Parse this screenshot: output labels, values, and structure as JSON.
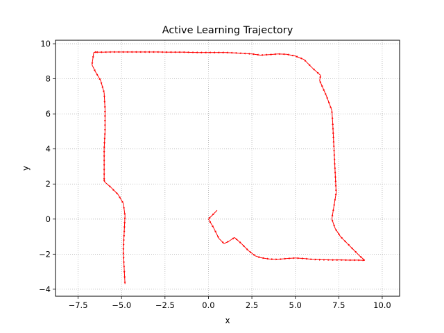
{
  "chart_data": {
    "type": "line",
    "title": "Active Learning Trajectory",
    "xlabel": "x",
    "ylabel": "y",
    "xlim": [
      -8.8,
      11.0
    ],
    "ylim": [
      -4.4,
      10.2
    ],
    "xticks": [
      -7.5,
      -5.0,
      -2.5,
      0.0,
      2.5,
      5.0,
      7.5,
      10.0
    ],
    "xtick_labels": [
      "−7.5",
      "−5.0",
      "−2.5",
      "0.0",
      "2.5",
      "5.0",
      "7.5",
      "10.0"
    ],
    "yticks": [
      -4,
      -2,
      0,
      2,
      4,
      6,
      8,
      10
    ],
    "ytick_labels": [
      "−4",
      "−2",
      "0",
      "2",
      "4",
      "6",
      "8",
      "10"
    ],
    "grid": true,
    "grid_style": "dotted",
    "series": [
      {
        "color": "#ff0000",
        "marker": "arrow",
        "x": [
          0.5,
          0.2,
          0.0,
          0.3,
          0.6,
          0.9,
          1.2,
          1.5,
          1.9,
          2.3,
          2.7,
          3.0,
          3.5,
          4.0,
          4.5,
          5.0,
          5.5,
          6.0,
          6.5,
          7.0,
          7.5,
          8.0,
          8.5,
          9.0,
          8.7,
          8.4,
          8.0,
          7.6,
          7.3,
          7.1,
          7.2,
          7.35,
          7.3,
          7.25,
          7.2,
          7.15,
          7.1,
          6.8,
          6.4,
          6.45,
          6.0,
          5.5,
          5.0,
          4.5,
          4.0,
          3.5,
          3.0,
          2.5,
          2.0,
          1.5,
          1.0,
          0.5,
          0.0,
          -0.5,
          -1.0,
          -1.5,
          -2.0,
          -2.5,
          -3.0,
          -3.5,
          -4.0,
          -4.5,
          -5.0,
          -5.5,
          -6.0,
          -6.5,
          -6.6,
          -6.7,
          -6.5,
          -6.2,
          -6.0,
          -5.95,
          -5.95,
          -6.0,
          -6.0,
          -6.0,
          -5.95,
          -5.6,
          -5.2,
          -4.9,
          -4.8,
          -4.85,
          -4.9,
          -4.85,
          -4.8
        ],
        "y": [
          0.5,
          0.2,
          0.0,
          -0.5,
          -1.1,
          -1.4,
          -1.25,
          -1.05,
          -1.4,
          -1.8,
          -2.1,
          -2.2,
          -2.28,
          -2.3,
          -2.25,
          -2.22,
          -2.25,
          -2.3,
          -2.32,
          -2.33,
          -2.33,
          -2.34,
          -2.34,
          -2.35,
          -2.1,
          -1.8,
          -1.4,
          -1.0,
          -0.55,
          0.0,
          0.6,
          1.5,
          2.5,
          3.5,
          4.5,
          5.5,
          6.2,
          7.0,
          7.9,
          8.2,
          8.6,
          9.1,
          9.3,
          9.4,
          9.42,
          9.38,
          9.35,
          9.42,
          9.45,
          9.48,
          9.5,
          9.5,
          9.5,
          9.5,
          9.51,
          9.52,
          9.52,
          9.52,
          9.53,
          9.53,
          9.53,
          9.53,
          9.53,
          9.53,
          9.52,
          9.52,
          9.5,
          8.8,
          8.4,
          7.9,
          7.2,
          6.3,
          5.0,
          4.0,
          3.0,
          2.2,
          2.1,
          1.8,
          1.4,
          0.9,
          0.2,
          -0.8,
          -1.8,
          -2.8,
          -3.7
        ]
      }
    ]
  }
}
